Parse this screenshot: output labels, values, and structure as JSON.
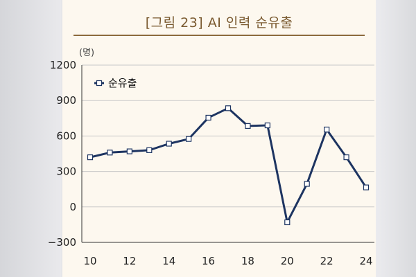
{
  "title": "[그림 23] AI 인력 순유출",
  "colors": {
    "line": "#1d3461",
    "marker_fill": "#ffffff",
    "title": "#7a5a30",
    "card_bg": "#fdf8ef",
    "grid": "#c8c8c8"
  },
  "chart_data": {
    "type": "line",
    "title": "[그림 23] AI 인력 순유출",
    "ylabel": "(명)",
    "xlabel": "",
    "x": [
      10,
      11,
      12,
      13,
      14,
      15,
      16,
      17,
      18,
      19,
      20,
      21,
      22,
      23,
      24
    ],
    "series": [
      {
        "name": "순유출",
        "values": [
          420,
          460,
          470,
          480,
          535,
          575,
          755,
          835,
          685,
          690,
          -130,
          195,
          655,
          420,
          165
        ]
      }
    ],
    "ylim": [
      -300,
      1200
    ],
    "yticks": [
      -300,
      0,
      300,
      600,
      900,
      1200
    ],
    "ytick_labels": [
      "−300",
      "0",
      "300",
      "600",
      "900",
      "1200"
    ],
    "xlim": [
      10,
      24
    ],
    "xticks": [
      10,
      12,
      14,
      16,
      18,
      20,
      22,
      24
    ],
    "xtick_labels": [
      "10",
      "12",
      "14",
      "16",
      "18",
      "20",
      "22",
      "24"
    ],
    "grid": true,
    "legend": "top-left",
    "marker": "square"
  }
}
